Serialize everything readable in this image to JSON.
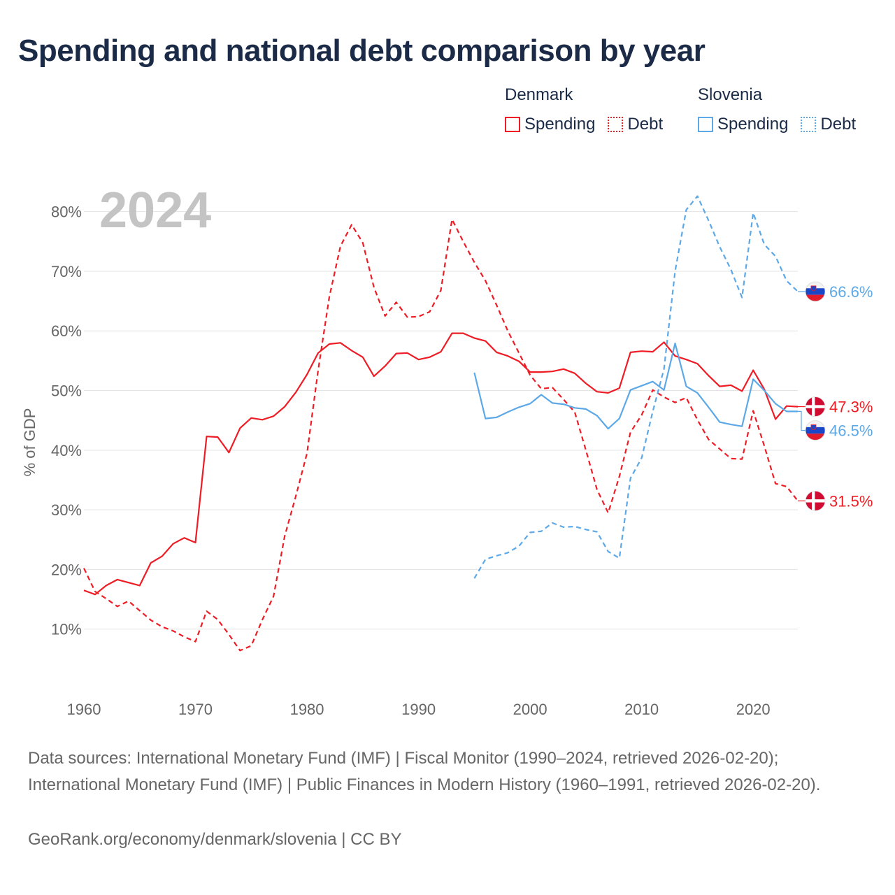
{
  "title": "Spending and national debt comparison by year",
  "legend": {
    "denmark": {
      "country": "Denmark",
      "spending": "Spending",
      "debt": "Debt"
    },
    "slovenia": {
      "country": "Slovenia",
      "spending": "Spending",
      "debt": "Debt"
    }
  },
  "colors": {
    "denmark": "#ee1c25",
    "slovenia": "#5da8e6"
  },
  "chart_data": {
    "type": "line",
    "year_label": "2024",
    "ylabel": "% of GDP",
    "xlim": [
      1960,
      2024
    ],
    "ylim": [
      0,
      85
    ],
    "xticks": [
      1960,
      1970,
      1980,
      1990,
      2000,
      2010,
      2020
    ],
    "yticks": [
      10,
      20,
      30,
      40,
      50,
      60,
      70,
      80
    ],
    "series": [
      {
        "name": "Denmark Spending",
        "country": "Denmark",
        "style": "solid",
        "color": "#ee1c25",
        "end_label": "47.3%",
        "flag": "denmark",
        "x": [
          1960,
          1961,
          1962,
          1963,
          1964,
          1965,
          1966,
          1967,
          1968,
          1969,
          1970,
          1971,
          1972,
          1973,
          1974,
          1975,
          1976,
          1977,
          1978,
          1979,
          1980,
          1981,
          1982,
          1983,
          1984,
          1985,
          1986,
          1987,
          1988,
          1989,
          1990,
          1991,
          1992,
          1993,
          1994,
          1995,
          1996,
          1997,
          1998,
          1999,
          2000,
          2001,
          2002,
          2003,
          2004,
          2005,
          2006,
          2007,
          2008,
          2009,
          2010,
          2011,
          2012,
          2013,
          2014,
          2015,
          2016,
          2017,
          2018,
          2019,
          2020,
          2021,
          2022,
          2023,
          2024
        ],
        "values": [
          16.5,
          15.8,
          17.3,
          18.3,
          17.8,
          17.3,
          21.1,
          22.2,
          24.3,
          25.3,
          24.5,
          42.3,
          42.2,
          39.6,
          43.7,
          45.4,
          45.1,
          45.7,
          47.3,
          49.7,
          52.7,
          56.3,
          57.8,
          58.0,
          56.7,
          55.6,
          52.4,
          54.1,
          56.2,
          56.3,
          55.2,
          55.6,
          56.5,
          59.6,
          59.6,
          58.8,
          58.3,
          56.4,
          55.8,
          54.9,
          53.1,
          53.1,
          53.2,
          53.6,
          52.9,
          51.2,
          49.8,
          49.6,
          50.4,
          56.4,
          56.6,
          56.5,
          58.1,
          55.8,
          55.2,
          54.5,
          52.5,
          50.7,
          50.9,
          49.9,
          53.4,
          50.2,
          45.2,
          47.4,
          47.3
        ]
      },
      {
        "name": "Denmark Debt",
        "country": "Denmark",
        "style": "dashed",
        "color": "#ee1c25",
        "end_label": "31.5%",
        "flag": "denmark",
        "x": [
          1960,
          1961,
          1962,
          1963,
          1964,
          1965,
          1966,
          1967,
          1968,
          1969,
          1970,
          1971,
          1972,
          1973,
          1974,
          1975,
          1976,
          1977,
          1978,
          1979,
          1980,
          1981,
          1982,
          1983,
          1984,
          1985,
          1986,
          1987,
          1988,
          1989,
          1990,
          1991,
          1992,
          1993,
          1994,
          1995,
          1996,
          1997,
          1998,
          1999,
          2000,
          2001,
          2002,
          2003,
          2004,
          2005,
          2006,
          2007,
          2008,
          2009,
          2010,
          2011,
          2012,
          2013,
          2014,
          2015,
          2016,
          2017,
          2018,
          2019,
          2020,
          2021,
          2022,
          2023,
          2024
        ],
        "values": [
          20.2,
          16.3,
          15.1,
          13.8,
          14.7,
          13.1,
          11.5,
          10.4,
          9.7,
          8.7,
          7.9,
          13.0,
          11.6,
          9.1,
          6.4,
          7.2,
          11.6,
          15.5,
          25.6,
          32.3,
          39.5,
          53.4,
          65.7,
          74.2,
          77.8,
          74.8,
          67.3,
          62.5,
          64.8,
          62.3,
          62.4,
          63.2,
          66.8,
          78.7,
          75.0,
          71.5,
          68.4,
          64.3,
          60.0,
          56.3,
          52.6,
          50.3,
          50.5,
          48.5,
          46.4,
          40.0,
          33.4,
          29.5,
          35.6,
          43.0,
          45.9,
          50.1,
          48.9,
          48.0,
          48.8,
          45.1,
          41.8,
          40.2,
          38.6,
          38.5,
          46.6,
          40.7,
          34.4,
          33.9,
          31.5
        ]
      },
      {
        "name": "Slovenia Spending",
        "country": "Slovenia",
        "style": "solid",
        "color": "#5da8e6",
        "end_label": "46.5%",
        "flag": "slovenia",
        "x": [
          1995,
          1996,
          1997,
          1998,
          1999,
          2000,
          2001,
          2002,
          2003,
          2004,
          2005,
          2006,
          2007,
          2008,
          2009,
          2010,
          2011,
          2012,
          2013,
          2014,
          2015,
          2016,
          2017,
          2018,
          2019,
          2020,
          2021,
          2022,
          2023,
          2024
        ],
        "values": [
          53.0,
          45.3,
          45.5,
          46.4,
          47.2,
          47.8,
          49.3,
          47.9,
          47.7,
          47.1,
          46.9,
          45.8,
          43.6,
          45.3,
          50.1,
          50.8,
          51.5,
          50.1,
          57.9,
          50.7,
          49.6,
          47.2,
          44.7,
          44.3,
          44.0,
          51.9,
          50.0,
          47.8,
          46.5,
          46.5
        ]
      },
      {
        "name": "Slovenia Debt",
        "country": "Slovenia",
        "style": "dashed",
        "color": "#5da8e6",
        "end_label": "66.6%",
        "flag": "slovenia",
        "x": [
          1995,
          1996,
          1997,
          1998,
          1999,
          2000,
          2001,
          2002,
          2003,
          2004,
          2005,
          2006,
          2007,
          2008,
          2009,
          2010,
          2011,
          2012,
          2013,
          2014,
          2015,
          2016,
          2017,
          2018,
          2019,
          2020,
          2021,
          2022,
          2023,
          2024
        ],
        "values": [
          18.5,
          21.7,
          22.3,
          22.8,
          23.9,
          26.2,
          26.4,
          27.8,
          27.1,
          27.2,
          26.7,
          26.3,
          23.0,
          21.9,
          35.3,
          38.7,
          46.5,
          53.6,
          70.0,
          80.3,
          82.6,
          78.5,
          74.1,
          70.3,
          65.6,
          79.8,
          74.5,
          72.5,
          68.4,
          66.6
        ]
      }
    ]
  },
  "source": {
    "text": "Data sources: International Monetary Fund (IMF) | Fiscal Monitor (1990–2024, retrieved 2026-02-20); International Monetary Fund (IMF) | Public Finances in Modern History (1960–1991, retrieved 2026-02-20).",
    "url": "GeoRank.org/economy/denmark/slovenia | CC BY"
  }
}
